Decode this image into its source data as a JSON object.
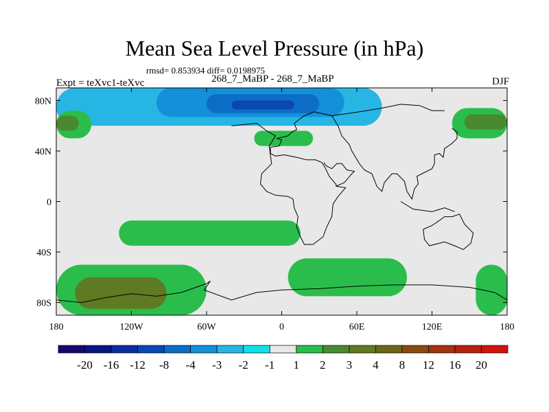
{
  "chart_data": {
    "type": "heatmap",
    "title": "Mean Sea Level Pressure (in hPa)",
    "stats": "rmsd= 0.853934 diff= 0.0198975",
    "left_label": "Expt = teXvc1-teXvc",
    "center_label": "268_7_MaBP - 268_7_MaBP",
    "right_label": "DJF",
    "x_ticks": [
      "180",
      "120W",
      "60W",
      "0",
      "60E",
      "120E",
      "180"
    ],
    "x_tick_values": [
      -180,
      -120,
      -60,
      0,
      60,
      120,
      180
    ],
    "y_ticks": [
      "80N",
      "40N",
      "0",
      "40S",
      "80S"
    ],
    "y_tick_values": [
      80,
      40,
      0,
      -40,
      -80
    ],
    "xlim": [
      -180,
      180
    ],
    "ylim": [
      -90,
      90
    ],
    "colorbar": {
      "labels": [
        "-20",
        "-16",
        "-12",
        "-8",
        "-4",
        "-3",
        "-2",
        "-1",
        "1",
        "2",
        "3",
        "4",
        "8",
        "12",
        "16",
        "20"
      ],
      "colors": [
        "#16096e",
        "#0a1585",
        "#0c2da0",
        "#0a47b2",
        "#0d6cc6",
        "#1490d8",
        "#27b6e4",
        "#14dfe8",
        "#e8e8e8",
        "#2bbd4c",
        "#4a8a2e",
        "#5e7a22",
        "#6e641a",
        "#8a4a10",
        "#a3330c",
        "#b82010",
        "#d2130a"
      ]
    },
    "regions": [
      {
        "level": "-2",
        "color": "#27b6e4",
        "lon": [
          -180,
          80
        ],
        "lat": [
          60,
          90
        ],
        "desc": "polar low band"
      },
      {
        "level": "-3",
        "color": "#1490d8",
        "lon": [
          -100,
          50
        ],
        "lat": [
          67,
          90
        ]
      },
      {
        "level": "-4",
        "color": "#0d6cc6",
        "lon": [
          -60,
          30
        ],
        "lat": [
          70,
          85
        ]
      },
      {
        "level": "-8",
        "color": "#0a47b2",
        "lon": [
          -40,
          10
        ],
        "lat": [
          73,
          80
        ]
      },
      {
        "level": "2",
        "color": "#2bbd4c",
        "lon": [
          -180,
          -152
        ],
        "lat": [
          50,
          72
        ]
      },
      {
        "level": "2",
        "color": "#2bbd4c",
        "lon": [
          136,
          180
        ],
        "lat": [
          50,
          74
        ]
      },
      {
        "level": "2",
        "color": "#2bbd4c",
        "lon": [
          -22,
          25
        ],
        "lat": [
          44,
          56
        ]
      },
      {
        "level": "2",
        "color": "#2bbd4c",
        "lon": [
          -130,
          15
        ],
        "lat": [
          -35,
          -15
        ]
      },
      {
        "level": "2",
        "color": "#2bbd4c",
        "lon": [
          -180,
          -60
        ],
        "lat": [
          -90,
          -50
        ]
      },
      {
        "level": "2",
        "color": "#2bbd4c",
        "lon": [
          5,
          100
        ],
        "lat": [
          -75,
          -45
        ]
      },
      {
        "level": "2",
        "color": "#2bbd4c",
        "lon": [
          155,
          180
        ],
        "lat": [
          -90,
          -50
        ]
      },
      {
        "level": "3",
        "color": "#4a8a2e",
        "lon": [
          -180,
          -162
        ],
        "lat": [
          56,
          68
        ]
      },
      {
        "level": "3",
        "color": "#4a8a2e",
        "lon": [
          146,
          180
        ],
        "lat": [
          57,
          69
        ]
      },
      {
        "level": "4",
        "color": "#5e7a22",
        "lon": [
          -165,
          -92
        ],
        "lat": [
          -85,
          -60
        ]
      }
    ]
  }
}
